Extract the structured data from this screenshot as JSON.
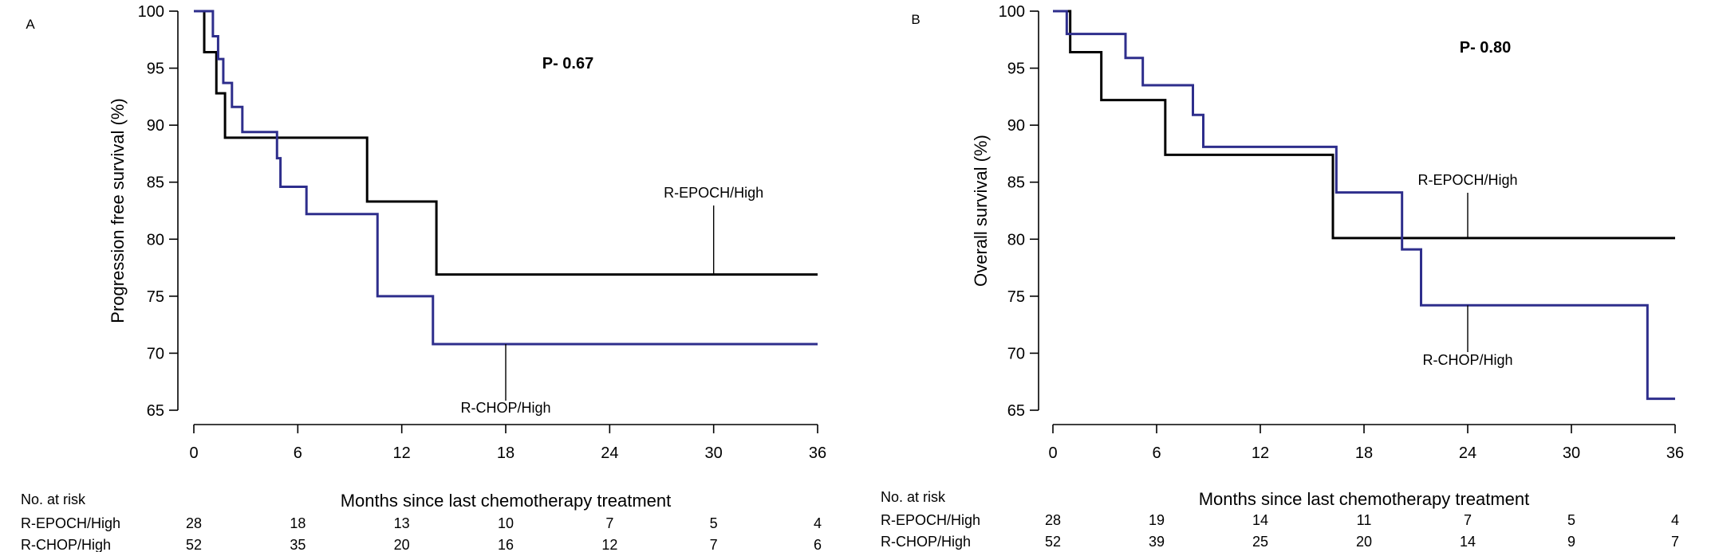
{
  "chart_data": [
    {
      "type": "line",
      "panel_label": "A",
      "title": "",
      "xlabel": "Months since last chemotherapy treatment",
      "ylabel": "Progression free survival (%)",
      "xlim": [
        0,
        36
      ],
      "ylim": [
        65,
        100
      ],
      "xticks": [
        0,
        6,
        12,
        18,
        24,
        30,
        36
      ],
      "yticks": [
        65,
        70,
        75,
        80,
        85,
        90,
        95,
        100
      ],
      "grid": false,
      "p_value": "P- 0.67",
      "series": [
        {
          "name": "R-EPOCH/High",
          "color": "#000000",
          "x": [
            0,
            0.6,
            1.3,
            1.8,
            10.0,
            14.0,
            36
          ],
          "y": [
            100,
            96.4,
            92.8,
            88.9,
            83.3,
            76.9,
            76.9
          ]
        },
        {
          "name": "R-CHOP/High",
          "color": "#2e2e8c",
          "x": [
            0,
            1.1,
            1.4,
            1.7,
            2.2,
            2.8,
            3.1,
            4.8,
            5.0,
            6.5,
            10.6,
            13.8,
            36
          ],
          "y": [
            100,
            97.8,
            95.8,
            93.7,
            91.6,
            89.4,
            89.4,
            87.1,
            84.6,
            82.2,
            75.0,
            70.8,
            70.8
          ]
        }
      ],
      "annotations": [
        {
          "text": "R-EPOCH/High",
          "series": "R-EPOCH/High",
          "x": 30,
          "y": 76.9,
          "label_position": "above"
        },
        {
          "text": "R-CHOP/High",
          "series": "R-CHOP/High",
          "x": 18,
          "y": 70.8,
          "label_position": "below"
        }
      ],
      "risk_table": {
        "header": "No. at risk",
        "times": [
          0,
          6,
          12,
          18,
          24,
          30,
          36
        ],
        "rows": [
          {
            "label": "R-EPOCH/High",
            "values": [
              28,
              18,
              13,
              10,
              7,
              5,
              4
            ]
          },
          {
            "label": "R-CHOP/High",
            "values": [
              52,
              35,
              20,
              16,
              12,
              7,
              6
            ]
          }
        ]
      }
    },
    {
      "type": "line",
      "panel_label": "B",
      "title": "",
      "xlabel": "Months since last chemotherapy treatment",
      "ylabel": "Overall survival (%)",
      "xlim": [
        0,
        36
      ],
      "ylim": [
        65,
        100
      ],
      "xticks": [
        0,
        6,
        12,
        18,
        24,
        30,
        36
      ],
      "yticks": [
        65,
        70,
        75,
        80,
        85,
        90,
        95,
        100
      ],
      "grid": false,
      "p_value": "P- 0.80",
      "series": [
        {
          "name": "R-EPOCH/High",
          "color": "#000000",
          "x": [
            0,
            1.0,
            2.8,
            6.5,
            16.2,
            36
          ],
          "y": [
            100,
            96.4,
            92.2,
            87.4,
            80.1,
            80.1
          ]
        },
        {
          "name": "R-CHOP/High",
          "color": "#2e2e8c",
          "x": [
            0,
            0.8,
            4.2,
            5.2,
            8.1,
            8.7,
            16.4,
            20.2,
            21.3,
            34.4,
            36
          ],
          "y": [
            100,
            98.0,
            95.9,
            93.5,
            90.9,
            88.1,
            84.1,
            79.1,
            74.2,
            66.0,
            66.0
          ]
        }
      ],
      "annotations": [
        {
          "text": "R-EPOCH/High",
          "series": "R-EPOCH/High",
          "x": 24,
          "y": 80.1,
          "label_position": "above"
        },
        {
          "text": "R-CHOP/High",
          "series": "R-CHOP/High",
          "x": 24,
          "y": 74.2,
          "label_position": "below"
        }
      ],
      "risk_table": {
        "header": "No. at risk",
        "times": [
          0,
          6,
          12,
          18,
          24,
          30,
          36
        ],
        "rows": [
          {
            "label": "R-EPOCH/High",
            "values": [
              28,
              19,
              14,
              11,
              7,
              5,
              4
            ]
          },
          {
            "label": "R-CHOP/High",
            "values": [
              52,
              39,
              25,
              20,
              14,
              9,
              7
            ]
          }
        ]
      }
    }
  ]
}
